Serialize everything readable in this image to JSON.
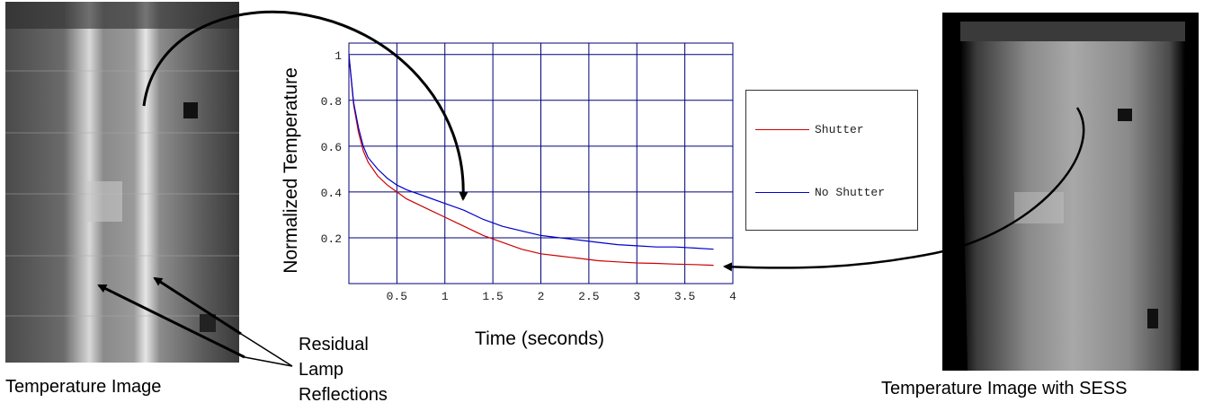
{
  "captions": {
    "left": "Temperature Image",
    "right": "Temperature Image with SESS"
  },
  "annotation": {
    "line1": "Residual",
    "line2": "Lamp",
    "line3": "Reflections"
  },
  "colors": {
    "shutter": "#cc0000",
    "no_shutter": "#0000cc",
    "grid": "#00007a"
  },
  "chart_data": {
    "type": "line",
    "title": "",
    "xlabel": "Time (seconds)",
    "ylabel": "Normalized Temperature",
    "xlim": [
      0,
      4
    ],
    "ylim": [
      0,
      1.05
    ],
    "xticks": [
      0.5,
      1,
      1.5,
      2,
      2.5,
      3,
      3.5,
      4
    ],
    "xtick_labels": [
      "0.5",
      "1",
      "1.5",
      "2",
      "2.5",
      "3",
      "3.5",
      "4"
    ],
    "yticks": [
      0.2,
      0.4,
      0.6,
      0.8,
      1
    ],
    "ytick_labels": [
      "0.2",
      "0.4",
      "0.6",
      "0.8",
      "1"
    ],
    "grid": true,
    "legend_position": "right",
    "series": [
      {
        "name": "Shutter",
        "x": [
          0,
          0.05,
          0.1,
          0.15,
          0.2,
          0.3,
          0.4,
          0.5,
          0.6,
          0.8,
          1.0,
          1.2,
          1.4,
          1.6,
          1.8,
          2.0,
          2.2,
          2.4,
          2.6,
          2.8,
          3.0,
          3.2,
          3.4,
          3.6,
          3.8
        ],
        "values": [
          1.0,
          0.78,
          0.66,
          0.58,
          0.53,
          0.47,
          0.43,
          0.4,
          0.37,
          0.33,
          0.29,
          0.25,
          0.21,
          0.18,
          0.15,
          0.13,
          0.12,
          0.11,
          0.1,
          0.095,
          0.09,
          0.088,
          0.085,
          0.083,
          0.08
        ]
      },
      {
        "name": "No Shutter",
        "x": [
          0,
          0.05,
          0.1,
          0.15,
          0.2,
          0.3,
          0.4,
          0.5,
          0.6,
          0.8,
          1.0,
          1.2,
          1.4,
          1.6,
          1.8,
          2.0,
          2.2,
          2.4,
          2.6,
          2.8,
          3.0,
          3.2,
          3.4,
          3.6,
          3.8
        ],
        "values": [
          1.0,
          0.79,
          0.68,
          0.6,
          0.55,
          0.5,
          0.46,
          0.43,
          0.41,
          0.38,
          0.35,
          0.32,
          0.28,
          0.25,
          0.23,
          0.21,
          0.2,
          0.19,
          0.18,
          0.17,
          0.165,
          0.16,
          0.16,
          0.155,
          0.15
        ]
      }
    ]
  }
}
